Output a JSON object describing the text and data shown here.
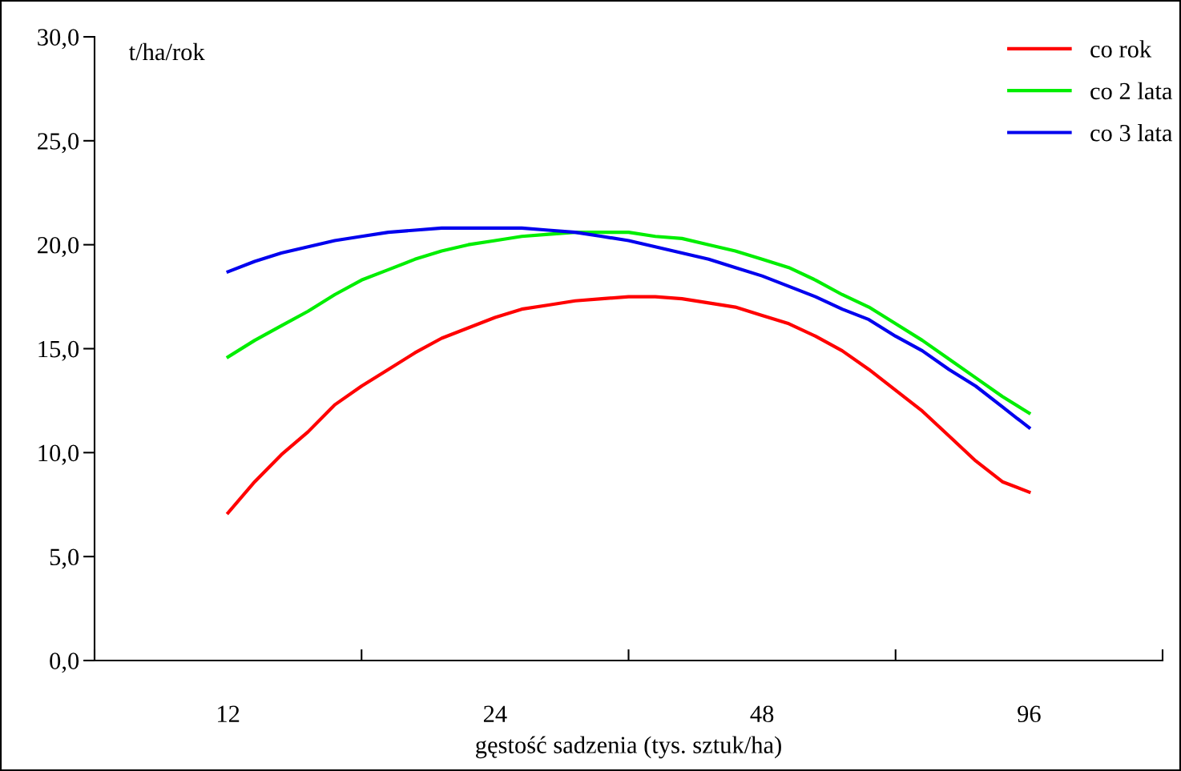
{
  "chart_data": {
    "type": "line",
    "xlabel": "gęstość sadzenia (tys. sztuk/ha)",
    "ylabel": "t/ha/rok",
    "log": "x",
    "x": [
      12,
      12.86,
      13.78,
      14.77,
      15.83,
      16.97,
      18.19,
      19.49,
      20.89,
      22.39,
      24,
      25.72,
      27.57,
      29.55,
      31.67,
      33.94,
      36.38,
      38.99,
      41.79,
      44.78,
      48,
      51.45,
      55.14,
      59.1,
      63.34,
      67.88,
      72.76,
      77.98,
      83.58,
      89.57,
      96
    ],
    "xlim": [
      8.485,
      135.76
    ],
    "xticks": [
      {
        "value": 8.485,
        "label": null
      },
      {
        "value": 12,
        "label": "12"
      },
      {
        "value": 16.97,
        "label": null
      },
      {
        "value": 24,
        "label": "24"
      },
      {
        "value": 33.94,
        "label": null
      },
      {
        "value": 48,
        "label": "48"
      },
      {
        "value": 67.88,
        "label": null
      },
      {
        "value": 96,
        "label": "96"
      },
      {
        "value": 135.76,
        "label": null
      }
    ],
    "ylim": [
      0,
      30
    ],
    "yticks": [
      {
        "value": 0,
        "label": "0,0"
      },
      {
        "value": 5,
        "label": "5,0"
      },
      {
        "value": 10,
        "label": "10,0"
      },
      {
        "value": 15,
        "label": "15,0"
      },
      {
        "value": 20,
        "label": "20,0"
      },
      {
        "value": 25,
        "label": "25,0"
      },
      {
        "value": 30,
        "label": "30,0"
      }
    ],
    "grid": false,
    "legend": "top right",
    "marker": "none",
    "line_style": "solid",
    "series": [
      {
        "name": "co rok",
        "color": "#ff0000",
        "values": [
          7.1,
          8.6,
          9.9,
          11.0,
          12.3,
          13.2,
          14.0,
          14.8,
          15.5,
          16.0,
          16.5,
          16.9,
          17.1,
          17.3,
          17.4,
          17.5,
          17.5,
          17.4,
          17.2,
          17.0,
          16.6,
          16.2,
          15.6,
          14.9,
          14.0,
          13.0,
          12.0,
          10.8,
          9.6,
          8.6,
          8.1
        ]
      },
      {
        "name": "co 2 lata",
        "color": "#00ee00",
        "values": [
          14.6,
          15.4,
          16.1,
          16.8,
          17.6,
          18.3,
          18.8,
          19.3,
          19.7,
          20.0,
          20.2,
          20.4,
          20.5,
          20.6,
          20.6,
          20.6,
          20.4,
          20.3,
          20.0,
          19.7,
          19.3,
          18.9,
          18.3,
          17.6,
          17.0,
          16.2,
          15.4,
          14.5,
          13.6,
          12.7,
          11.9
        ]
      },
      {
        "name": "co 3 lata",
        "color": "#0000ee",
        "values": [
          18.7,
          19.2,
          19.6,
          19.9,
          20.2,
          20.4,
          20.6,
          20.7,
          20.8,
          20.8,
          20.8,
          20.8,
          20.7,
          20.6,
          20.4,
          20.2,
          19.9,
          19.6,
          19.3,
          18.9,
          18.5,
          18.0,
          17.5,
          16.9,
          16.4,
          15.6,
          14.9,
          14.0,
          13.2,
          12.2,
          11.2
        ]
      }
    ]
  }
}
